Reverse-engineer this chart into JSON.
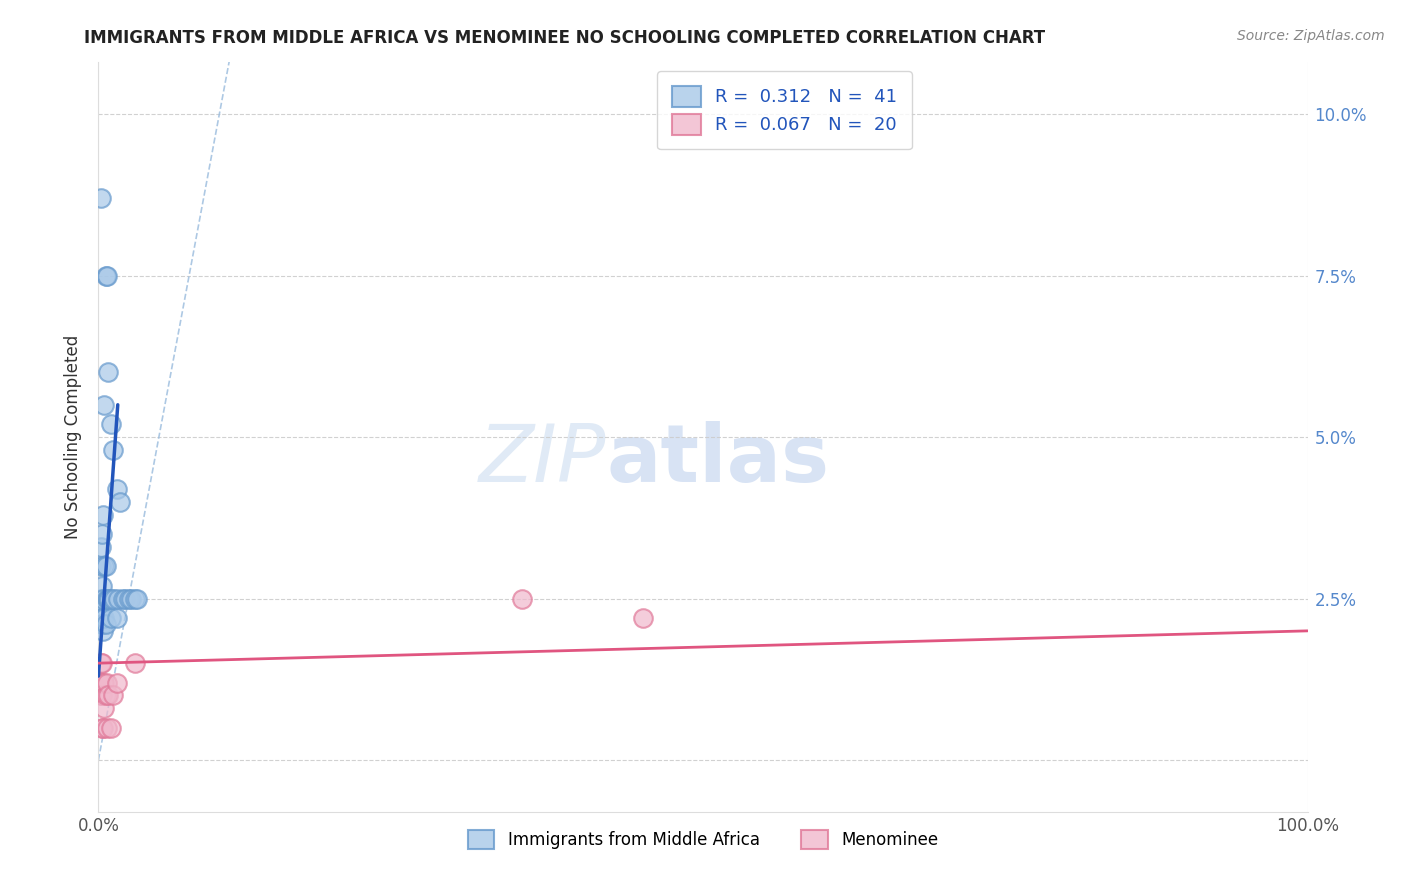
{
  "title": "IMMIGRANTS FROM MIDDLE AFRICA VS MENOMINEE NO SCHOOLING COMPLETED CORRELATION CHART",
  "source": "Source: ZipAtlas.com",
  "ylabel": "No Schooling Completed",
  "xlim": [
    0,
    1.0
  ],
  "ylim": [
    -0.008,
    0.108
  ],
  "blue_color": "#a8c8e8",
  "blue_edge": "#6699cc",
  "pink_color": "#f0b8cc",
  "pink_edge": "#e07898",
  "trendline_blue": "#2255bb",
  "trendline_pink": "#e05580",
  "diagonal_color": "#99bbdd",
  "legend_r1_label": "R =  0.312   N =  41",
  "legend_r2_label": "R =  0.067   N =  20",
  "bottom_legend1": "Immigrants from Middle Africa",
  "bottom_legend2": "Menominee",
  "background": "#ffffff",
  "grid_color": "#cccccc",
  "right_axis_color": "#5588cc",
  "blue_x": [
    0.001,
    0.002,
    0.002,
    0.002,
    0.002,
    0.003,
    0.003,
    0.003,
    0.003,
    0.003,
    0.004,
    0.004,
    0.004,
    0.004,
    0.005,
    0.005,
    0.005,
    0.006,
    0.006,
    0.006,
    0.007,
    0.007,
    0.008,
    0.008,
    0.009,
    0.01,
    0.01,
    0.011,
    0.012,
    0.013,
    0.015,
    0.015,
    0.016,
    0.018,
    0.02,
    0.022,
    0.025,
    0.027,
    0.03,
    0.032,
    0.002
  ],
  "blue_y": [
    0.024,
    0.033,
    0.03,
    0.025,
    0.023,
    0.035,
    0.027,
    0.022,
    0.022,
    0.021,
    0.038,
    0.025,
    0.021,
    0.02,
    0.055,
    0.03,
    0.022,
    0.075,
    0.03,
    0.021,
    0.075,
    0.025,
    0.06,
    0.025,
    0.025,
    0.052,
    0.022,
    0.025,
    0.048,
    0.025,
    0.042,
    0.022,
    0.025,
    0.04,
    0.025,
    0.025,
    0.025,
    0.025,
    0.025,
    0.025,
    0.087
  ],
  "pink_x": [
    0.001,
    0.002,
    0.002,
    0.003,
    0.003,
    0.003,
    0.004,
    0.004,
    0.005,
    0.005,
    0.006,
    0.007,
    0.007,
    0.008,
    0.01,
    0.012,
    0.015,
    0.03,
    0.35,
    0.45
  ],
  "pink_y": [
    0.012,
    0.015,
    0.01,
    0.015,
    0.01,
    0.005,
    0.012,
    0.005,
    0.012,
    0.008,
    0.01,
    0.012,
    0.005,
    0.01,
    0.005,
    0.01,
    0.012,
    0.015,
    0.025,
    0.022
  ],
  "blue_trend_x0": 0.0,
  "blue_trend_y0": 0.013,
  "blue_trend_x1": 0.016,
  "blue_trend_y1": 0.055,
  "pink_trend_x0": 0.0,
  "pink_trend_y0": 0.015,
  "pink_trend_x1": 1.0,
  "pink_trend_y1": 0.02
}
